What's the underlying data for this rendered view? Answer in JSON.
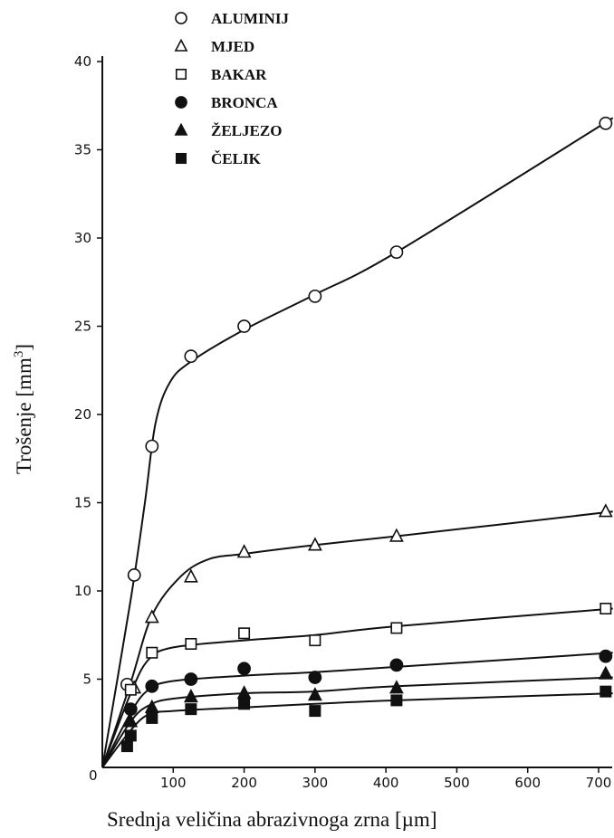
{
  "chart_data": {
    "type": "scatter",
    "xlabel": "Srednja veličina abrazivnoga zrna [µm]",
    "ylabel": "Trošenje [mm",
    "ylabel_sup": "3",
    "ylabel_end": "]",
    "xlim": [
      0,
      720
    ],
    "ylim": [
      0,
      40
    ],
    "x_ticks": [
      0,
      100,
      200,
      300,
      400,
      500,
      600,
      700
    ],
    "x_tick_labels": [
      "0",
      "100",
      "200",
      "300",
      "400",
      "500",
      "600",
      "700"
    ],
    "y_ticks": [
      5,
      10,
      15,
      20,
      25,
      30,
      35,
      40
    ],
    "y_tick_labels": [
      "5",
      "10",
      "15",
      "20",
      "25",
      "30",
      "35",
      "40"
    ],
    "legend_placement": "top-left",
    "grid": false,
    "series": [
      {
        "name": "ALUMINIJ",
        "marker": "circle-open",
        "points": [
          [
            35,
            4.7
          ],
          [
            45,
            10.9
          ],
          [
            70,
            18.2
          ],
          [
            125,
            23.3
          ],
          [
            200,
            25.0
          ],
          [
            300,
            26.7
          ],
          [
            415,
            29.2
          ],
          [
            710,
            36.5
          ]
        ],
        "curve": [
          [
            0,
            0
          ],
          [
            40,
            9.5
          ],
          [
            60,
            15.0
          ],
          [
            75,
            19.5
          ],
          [
            95,
            21.8
          ],
          [
            125,
            23.0
          ],
          [
            200,
            24.8
          ],
          [
            300,
            26.8
          ],
          [
            415,
            29.2
          ],
          [
            720,
            36.8
          ]
        ]
      },
      {
        "name": "MJED",
        "marker": "triangle-open",
        "points": [
          [
            45,
            4.5
          ],
          [
            70,
            8.5
          ],
          [
            125,
            10.8
          ],
          [
            200,
            12.2
          ],
          [
            300,
            12.6
          ],
          [
            415,
            13.1
          ],
          [
            710,
            14.5
          ]
        ],
        "curve": [
          [
            0,
            0
          ],
          [
            40,
            4.8
          ],
          [
            70,
            8.6
          ],
          [
            110,
            10.8
          ],
          [
            150,
            11.8
          ],
          [
            200,
            12.1
          ],
          [
            300,
            12.6
          ],
          [
            415,
            13.1
          ],
          [
            720,
            14.5
          ]
        ]
      },
      {
        "name": "BAKAR",
        "marker": "square-open",
        "points": [
          [
            40,
            4.4
          ],
          [
            70,
            6.5
          ],
          [
            125,
            7.0
          ],
          [
            200,
            7.6
          ],
          [
            300,
            7.2
          ],
          [
            415,
            7.9
          ],
          [
            710,
            9.0
          ]
        ],
        "curve": [
          [
            0,
            0
          ],
          [
            40,
            4.2
          ],
          [
            65,
            6.1
          ],
          [
            100,
            6.8
          ],
          [
            200,
            7.2
          ],
          [
            300,
            7.5
          ],
          [
            415,
            8.0
          ],
          [
            720,
            9.0
          ]
        ]
      },
      {
        "name": "BRONCA",
        "marker": "circle-filled",
        "points": [
          [
            40,
            3.3
          ],
          [
            70,
            4.6
          ],
          [
            125,
            5.0
          ],
          [
            200,
            5.6
          ],
          [
            300,
            5.1
          ],
          [
            415,
            5.8
          ],
          [
            710,
            6.3
          ]
        ],
        "curve": [
          [
            0,
            0
          ],
          [
            40,
            3.1
          ],
          [
            65,
            4.4
          ],
          [
            100,
            4.9
          ],
          [
            200,
            5.2
          ],
          [
            300,
            5.4
          ],
          [
            415,
            5.7
          ],
          [
            720,
            6.5
          ]
        ]
      },
      {
        "name": "ŽELJEZO",
        "marker": "triangle-filled",
        "points": [
          [
            40,
            2.6
          ],
          [
            70,
            3.4
          ],
          [
            125,
            4.0
          ],
          [
            200,
            4.2
          ],
          [
            300,
            4.1
          ],
          [
            415,
            4.5
          ],
          [
            710,
            5.3
          ]
        ],
        "curve": [
          [
            0,
            0
          ],
          [
            40,
            2.6
          ],
          [
            65,
            3.5
          ],
          [
            100,
            3.9
          ],
          [
            200,
            4.2
          ],
          [
            300,
            4.3
          ],
          [
            415,
            4.6
          ],
          [
            720,
            5.1
          ]
        ]
      },
      {
        "name": "ČELIK",
        "marker": "square-filled",
        "points": [
          [
            35,
            1.2
          ],
          [
            40,
            1.8
          ],
          [
            70,
            2.8
          ],
          [
            125,
            3.3
          ],
          [
            200,
            3.6
          ],
          [
            300,
            3.2
          ],
          [
            415,
            3.8
          ],
          [
            710,
            4.3
          ]
        ],
        "curve": [
          [
            0,
            0
          ],
          [
            40,
            2.1
          ],
          [
            65,
            3.0
          ],
          [
            100,
            3.2
          ],
          [
            200,
            3.4
          ],
          [
            300,
            3.6
          ],
          [
            415,
            3.8
          ],
          [
            720,
            4.2
          ]
        ]
      }
    ]
  }
}
